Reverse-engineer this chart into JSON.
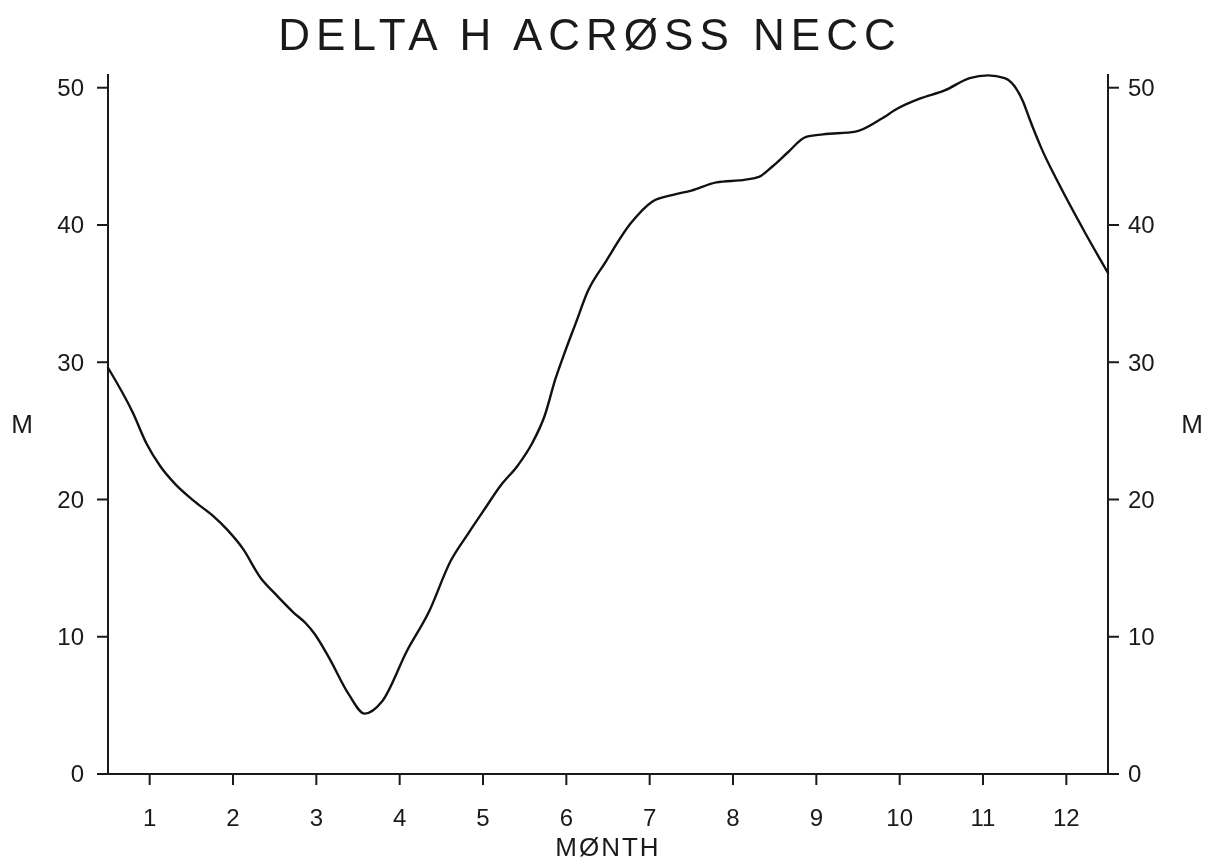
{
  "chart_data": {
    "type": "line",
    "title": "DELTA H ACRØSS NECC",
    "xlabel": "MØNTH",
    "ylabel": "M",
    "y2label": "M",
    "xlim": [
      0.5,
      12.5
    ],
    "xticks": [
      1,
      2,
      3,
      4,
      5,
      6,
      7,
      8,
      9,
      10,
      11,
      12
    ],
    "ylim": [
      0,
      51
    ],
    "yticks": [
      0,
      10,
      20,
      30,
      40,
      50
    ],
    "y2lim": [
      0,
      51
    ],
    "y2ticks": [
      0,
      10,
      20,
      30,
      40,
      50
    ],
    "x": [
      0.5,
      0.8,
      0.96,
      1.13,
      1.31,
      1.53,
      1.76,
      1.93,
      2.12,
      2.33,
      2.51,
      2.72,
      2.87,
      2.98,
      3.15,
      3.39,
      3.58,
      3.79,
      4.09,
      4.35,
      4.61,
      4.82,
      5.03,
      5.21,
      5.42,
      5.59,
      5.74,
      5.87,
      5.98,
      6.11,
      6.26,
      6.47,
      6.77,
      7.03,
      7.28,
      7.5,
      7.8,
      8.15,
      8.31,
      8.48,
      8.66,
      8.87,
      9.08,
      9.47,
      9.77,
      9.98,
      10.24,
      10.54,
      10.84,
      11.06,
      11.26,
      11.48,
      11.56,
      11.7,
      11.91,
      12.21,
      12.5
    ],
    "series": [
      {
        "color": "#111111",
        "values": [
          29.6,
          26.3,
          24.1,
          22.4,
          21.1,
          19.9,
          18.8,
          17.8,
          16.4,
          14.3,
          13.1,
          11.8,
          11.0,
          10.2,
          8.5,
          5.8,
          4.4,
          5.3,
          9.0,
          11.8,
          15.5,
          17.5,
          19.4,
          21.0,
          22.5,
          24.1,
          26.1,
          28.8,
          30.7,
          32.8,
          35.2,
          37.3,
          40.1,
          41.7,
          42.2,
          42.5,
          43.1,
          43.3,
          43.5,
          44.3,
          45.3,
          46.4,
          46.6,
          46.8,
          47.7,
          48.5,
          49.2,
          49.8,
          50.7,
          50.9,
          50.7,
          49.0,
          47.7,
          45.6,
          43.0,
          39.6,
          36.5
        ]
      }
    ]
  }
}
